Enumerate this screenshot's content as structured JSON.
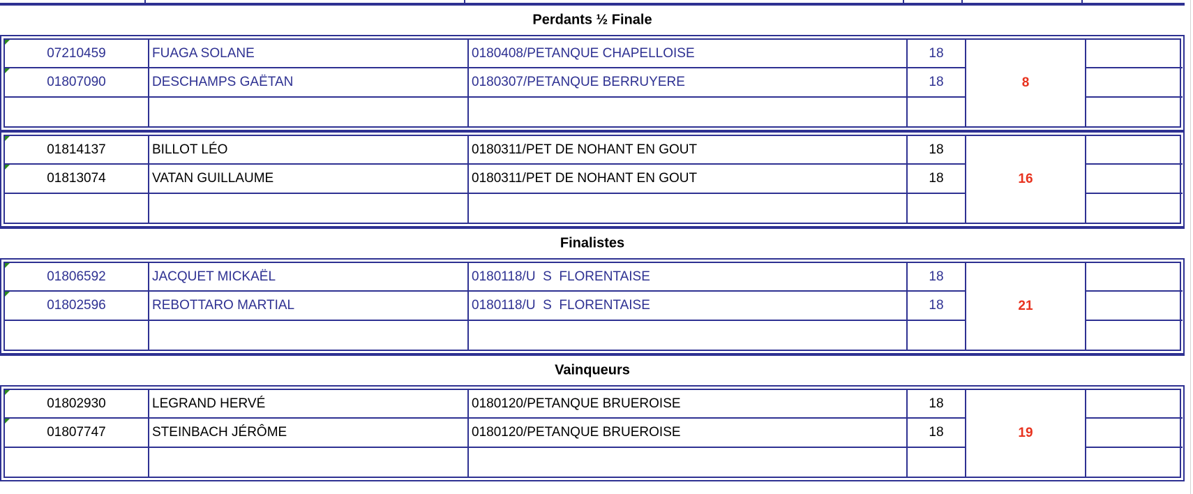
{
  "colors": {
    "border": "#2e3192",
    "blue_text": "#2e3192",
    "black_text": "#000000",
    "points": "#e8321e",
    "marker": "#2e8b1e"
  },
  "sections": [
    {
      "title": "Perdants ½ Finale",
      "teams": [
        {
          "color": "blue",
          "points": "8",
          "players": [
            {
              "license": "07210459",
              "name": "FUAGA SOLANE",
              "club": "0180408/PETANQUE CHAPELLOISE",
              "dept": "18"
            },
            {
              "license": "01807090",
              "name": "DESCHAMPS GAËTAN",
              "club": "0180307/PETANQUE BERRUYERE",
              "dept": "18"
            }
          ]
        },
        {
          "color": "black",
          "points": "16",
          "players": [
            {
              "license": "01814137",
              "name": "BILLOT LÉO",
              "club": "0180311/PET DE NOHANT EN GOUT",
              "dept": "18"
            },
            {
              "license": "01813074",
              "name": "VATAN GUILLAUME",
              "club": "0180311/PET DE NOHANT EN GOUT",
              "dept": "18"
            }
          ]
        }
      ]
    },
    {
      "title": "Finalistes",
      "teams": [
        {
          "color": "blue",
          "points": "21",
          "players": [
            {
              "license": "01806592",
              "name": "JACQUET MICKAËL",
              "club": "0180118/U  S  FLORENTAISE",
              "dept": "18"
            },
            {
              "license": "01802596",
              "name": "REBOTTARO MARTIAL",
              "club": "0180118/U  S  FLORENTAISE",
              "dept": "18"
            }
          ]
        }
      ]
    },
    {
      "title": "Vainqueurs",
      "teams": [
        {
          "color": "black",
          "points": "19",
          "players": [
            {
              "license": "01802930",
              "name": "LEGRAND HERVÉ",
              "club": "0180120/PETANQUE BRUEROISE",
              "dept": "18"
            },
            {
              "license": "01807747",
              "name": "STEINBACH JÉRÔME",
              "club": "0180120/PETANQUE BRUEROISE",
              "dept": "18"
            }
          ]
        }
      ]
    }
  ]
}
